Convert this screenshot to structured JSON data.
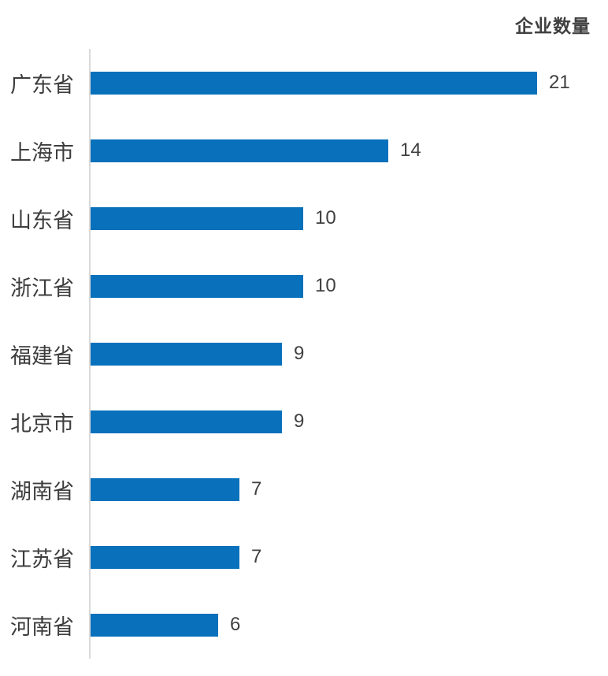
{
  "title": "企业数量",
  "colors": {
    "bar": "#0971bb",
    "axis": "#d9d9d9",
    "value_text": "#404040",
    "label_text": "#3d3d3d",
    "title_text": "#404040",
    "background": "#ffffff"
  },
  "chart_data": {
    "type": "bar",
    "orientation": "horizontal",
    "title": "企业数量",
    "categories": [
      "广东省",
      "上海市",
      "山东省",
      "浙江省",
      "福建省",
      "北京市",
      "湖南省",
      "江苏省",
      "河南省"
    ],
    "values": [
      21,
      14,
      10,
      10,
      9,
      9,
      7,
      7,
      6
    ],
    "xlim": [
      0,
      21
    ],
    "xlabel": "",
    "ylabel": "",
    "grid": false,
    "legend": "none",
    "data_labels": true,
    "data_label_position": "outside-end"
  }
}
